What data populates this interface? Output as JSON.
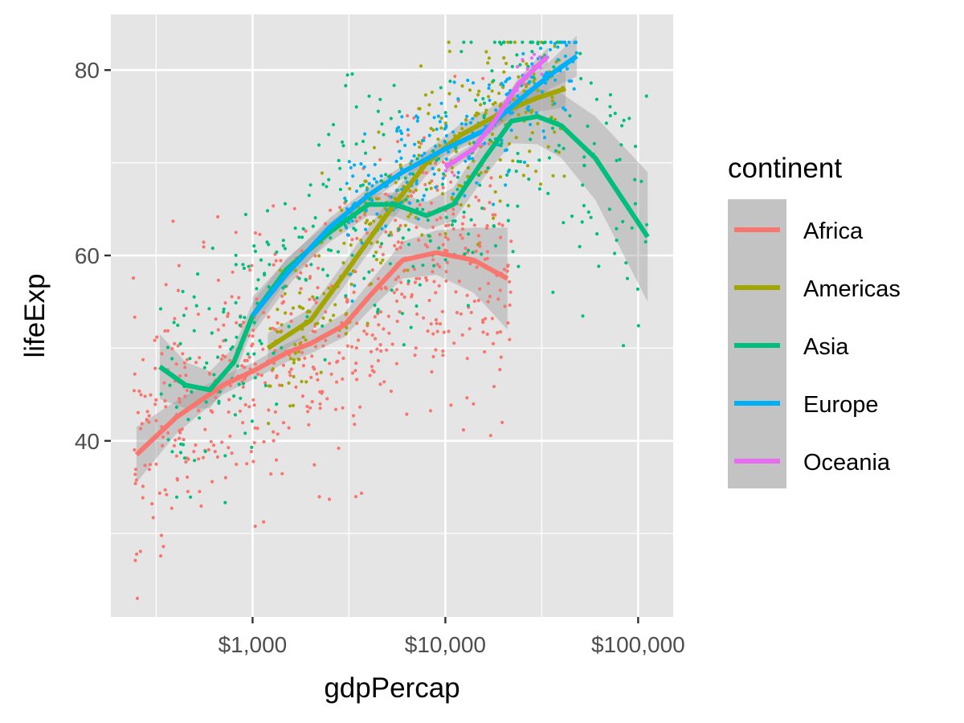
{
  "chart_data": {
    "type": "scatter",
    "title": "",
    "xlabel": "gdpPercap",
    "ylabel": "lifeExp",
    "x_scale": "log10",
    "xlim": [
      184,
      152000
    ],
    "ylim": [
      21,
      86
    ],
    "x_ticks": [
      {
        "value": 1000,
        "label": "$1,000"
      },
      {
        "value": 10000,
        "label": "$10,000"
      },
      {
        "value": 100000,
        "label": "$100,000"
      }
    ],
    "x_minor": [
      316,
      3162,
      31623
    ],
    "y_ticks": [
      {
        "value": 40,
        "label": "40"
      },
      {
        "value": 60,
        "label": "60"
      },
      {
        "value": 80,
        "label": "80"
      }
    ],
    "y_minor": [
      30,
      50,
      70
    ],
    "grid": true,
    "panel_color": "#e5e5e5",
    "ribbon_color": "#999999",
    "legend": {
      "title": "continent",
      "position": "right",
      "entries": [
        "Africa",
        "Americas",
        "Asia",
        "Europe",
        "Oceania"
      ]
    },
    "series": [
      {
        "name": "Africa",
        "color": "#F8766D",
        "smooth": [
          [
            250,
            38.5
          ],
          [
            400,
            42.5
          ],
          [
            700,
            46
          ],
          [
            1000,
            47.5
          ],
          [
            1500,
            49.5
          ],
          [
            2000,
            50.5
          ],
          [
            3000,
            52.5
          ],
          [
            4000,
            55.5
          ],
          [
            6000,
            59.5
          ],
          [
            9000,
            60.3
          ],
          [
            14000,
            59.5
          ],
          [
            21000,
            57.5
          ]
        ],
        "band": [
          3.0,
          1.8,
          1.0,
          0.9,
          1.0,
          1.1,
          1.3,
          1.5,
          2.0,
          2.4,
          3.5,
          5.5
        ],
        "cloud": {
          "xmin": 240,
          "xmax": 22000,
          "sd": 7,
          "n": 620
        }
      },
      {
        "name": "Americas",
        "color": "#A3A500",
        "smooth": [
          [
            1200,
            50
          ],
          [
            2000,
            53
          ],
          [
            3000,
            58
          ],
          [
            5000,
            64.5
          ],
          [
            8000,
            70
          ],
          [
            12000,
            73
          ],
          [
            20000,
            75.5
          ],
          [
            30000,
            77
          ],
          [
            42000,
            78
          ]
        ],
        "band": [
          1.6,
          1.3,
          1.3,
          1.4,
          1.3,
          1.2,
          1.2,
          1.5,
          2.0
        ],
        "cloud": {
          "xmin": 1200,
          "xmax": 42000,
          "sd": 4.5,
          "n": 300
        }
      },
      {
        "name": "Asia",
        "color": "#00BF7D",
        "smooth": [
          [
            330,
            48
          ],
          [
            450,
            46
          ],
          [
            600,
            45.5
          ],
          [
            800,
            48.5
          ],
          [
            1000,
            53.5
          ],
          [
            1500,
            58.5
          ],
          [
            2500,
            62.5
          ],
          [
            4000,
            65.5
          ],
          [
            5500,
            65.5
          ],
          [
            8000,
            64.3
          ],
          [
            11000,
            65.5
          ],
          [
            16000,
            70.5
          ],
          [
            22000,
            74.5
          ],
          [
            30000,
            75
          ],
          [
            40000,
            74
          ],
          [
            60000,
            70.5
          ],
          [
            112000,
            62
          ]
        ],
        "band": [
          3.5,
          2.5,
          2.0,
          1.6,
          1.4,
          1.2,
          1.1,
          1.2,
          1.3,
          1.5,
          1.8,
          2.0,
          2.4,
          3.0,
          3.5,
          4.5,
          7.0
        ],
        "cloud": {
          "xmin": 330,
          "xmax": 113000,
          "sd": 7,
          "n": 380
        }
      },
      {
        "name": "Europe",
        "color": "#00B0F6",
        "smooth": [
          [
            1000,
            53.5
          ],
          [
            1500,
            58
          ],
          [
            2500,
            63
          ],
          [
            4000,
            66.5
          ],
          [
            6000,
            69
          ],
          [
            10000,
            71.5
          ],
          [
            16000,
            73.5
          ],
          [
            25000,
            77
          ],
          [
            35000,
            79.5
          ],
          [
            48000,
            81.5
          ]
        ],
        "band": [
          2.0,
          1.5,
          1.0,
          0.8,
          0.7,
          0.7,
          0.8,
          1.0,
          1.5,
          2.2
        ],
        "cloud": {
          "xmin": 3000,
          "xmax": 48000,
          "sd": 3,
          "n": 230
        }
      },
      {
        "name": "Oceania",
        "color": "#E76BF3",
        "smooth": [
          [
            10000,
            69.5
          ],
          [
            14000,
            71.5
          ],
          [
            18000,
            74.5
          ],
          [
            24000,
            78.5
          ],
          [
            34000,
            81.5
          ]
        ],
        "band": [
          0.7,
          0.6,
          0.6,
          0.7,
          0.9
        ],
        "cloud": {
          "xmin": 10000,
          "xmax": 34000,
          "sd": 1.2,
          "n": 24
        }
      }
    ]
  }
}
